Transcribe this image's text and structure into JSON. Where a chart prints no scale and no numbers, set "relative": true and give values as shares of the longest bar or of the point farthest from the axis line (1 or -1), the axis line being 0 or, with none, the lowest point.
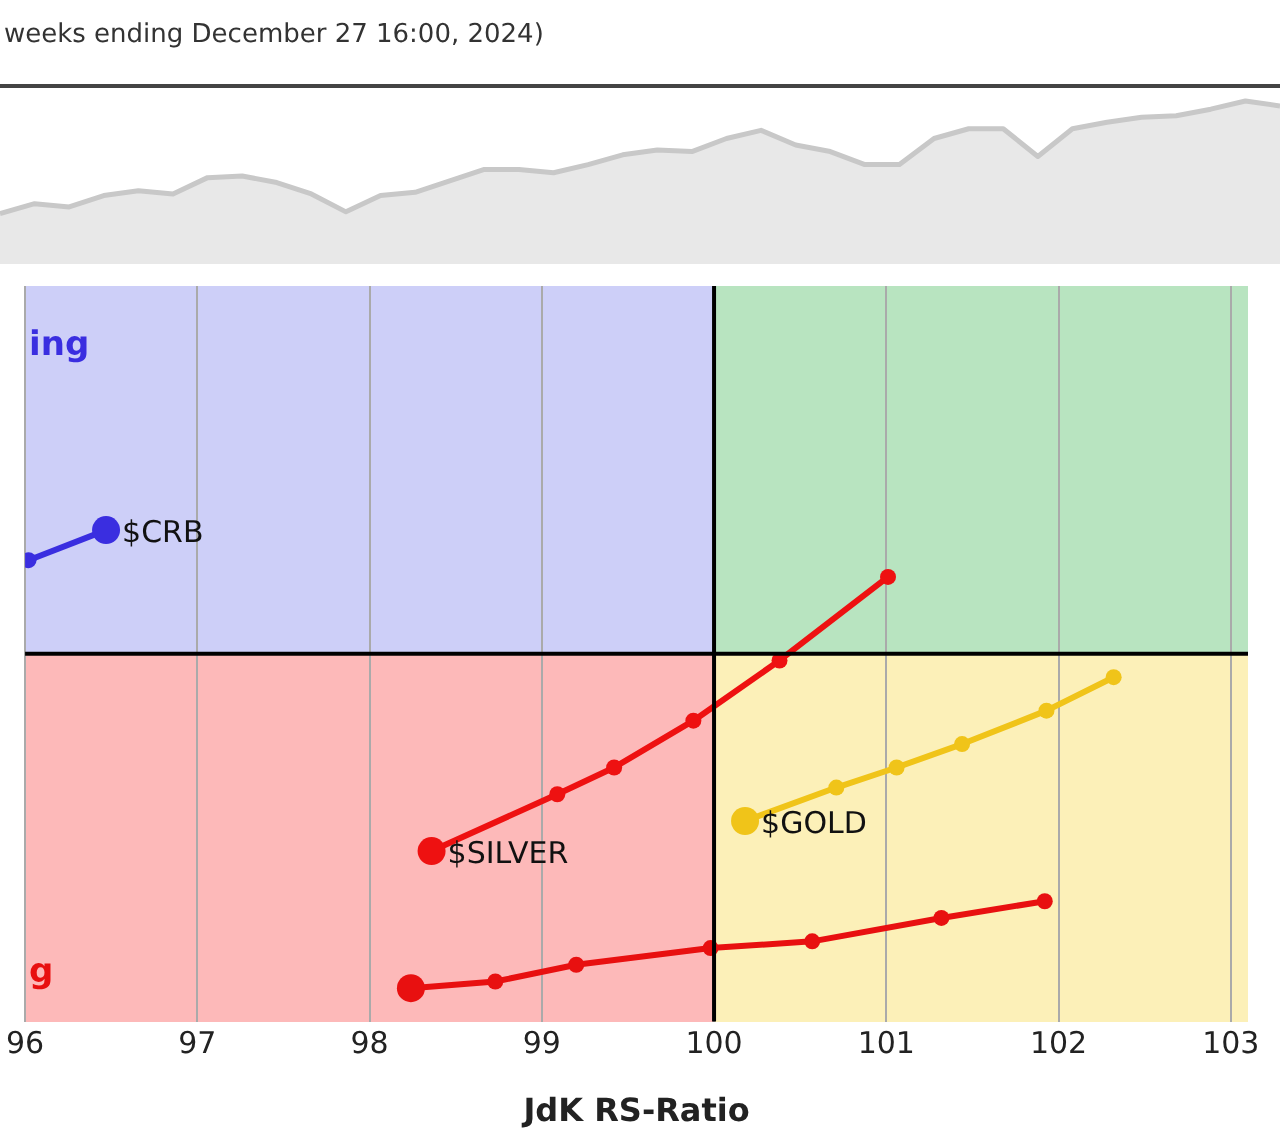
{
  "chart_data": [
    {
      "type": "area",
      "title": "weeks ending December 27 16:00, 2024)",
      "relative": true,
      "color": "#e8e8e8",
      "categories": [
        null,
        null,
        null,
        null,
        null,
        null,
        null,
        null,
        null,
        null,
        null,
        null,
        null,
        null,
        null,
        null,
        null,
        null,
        null,
        null,
        null,
        null,
        null,
        null,
        null,
        null,
        null,
        null,
        null,
        null,
        null,
        null,
        null,
        null,
        null,
        null,
        null,
        null
      ],
      "values": [
        0.31,
        0.37,
        0.35,
        0.42,
        0.45,
        0.43,
        0.53,
        0.54,
        0.5,
        0.43,
        0.32,
        0.42,
        0.44,
        0.51,
        0.58,
        0.58,
        0.56,
        0.61,
        0.67,
        0.7,
        0.69,
        0.77,
        0.82,
        0.73,
        0.69,
        0.61,
        0.61,
        0.77,
        0.83,
        0.83,
        0.66,
        0.83,
        0.87,
        0.9,
        0.91,
        0.95,
        1,
        0.97
      ]
    },
    {
      "type": "line",
      "xlabel": "JdK RS-Ratio",
      "relative": true,
      "marker": "circle",
      "grid": "x",
      "xlim": [
        96,
        103.1
      ],
      "xticks": [
        96,
        97,
        98,
        99,
        100,
        101,
        102,
        103
      ],
      "ref_lines": [
        {
          "axis": "x",
          "value": 100,
          "color": "#000000"
        },
        {
          "axis": "y",
          "value": 0,
          "color": "#000000"
        }
      ],
      "annotations": [
        "ing",
        "g"
      ],
      "series": [
        {
          "name": "$CRB",
          "color": "#3a2ee0",
          "x": [
            96.02,
            96.47
          ],
          "values": [
            0.28,
            0.37
          ]
        },
        {
          "name": "$SILVER",
          "color": "#ee1111",
          "x": [
            101.01,
            100.38,
            99.88,
            99.42,
            99.09,
            98.36
          ],
          "values": [
            0.23,
            -0.02,
            -0.2,
            -0.34,
            -0.42,
            -0.59
          ]
        },
        {
          "name": "$GOLD",
          "color": "#f0c419",
          "x": [
            102.32,
            101.93,
            101.44,
            101.06,
            100.71,
            100.18
          ],
          "values": [
            -0.07,
            -0.17,
            -0.27,
            -0.34,
            -0.4,
            -0.5
          ]
        },
        {
          "color": "#e81010",
          "x": [
            101.92,
            101.32,
            100.57,
            99.98,
            99.2,
            98.73,
            98.24
          ],
          "values": [
            -0.74,
            -0.79,
            -0.86,
            -0.88,
            -0.93,
            -0.98,
            -1
          ]
        }
      ]
    }
  ]
}
